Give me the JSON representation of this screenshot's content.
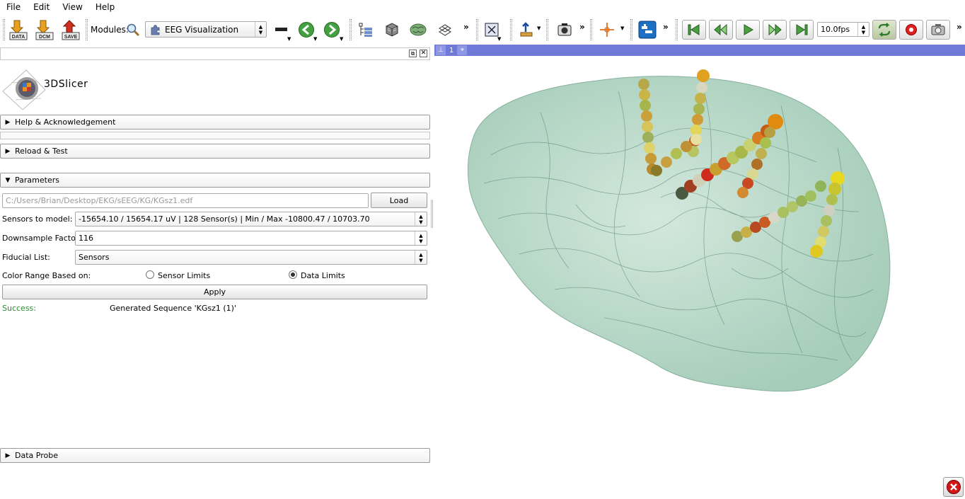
{
  "menubar": {
    "items": [
      "File",
      "Edit",
      "View",
      "Help"
    ]
  },
  "toolbar": {
    "data_label": "DATA",
    "dcm_label": "DCM",
    "save_label": "SAVE",
    "modules_label": "Modules:",
    "module_selected": "EEG Visualization",
    "fps_value": "10.0fps",
    "icons": [
      "data-icon",
      "dcm-icon",
      "save-icon",
      "search-icon",
      "puzzle-icon",
      "layout-icon",
      "back-arrow-icon",
      "forward-arrow-icon",
      "data-tree-icon",
      "volume-cube-icon",
      "brain-model-icon",
      "grid-icon",
      "crosshair-icon",
      "camera-icon",
      "mouse-mode-icon",
      "extension-icon",
      "first-frame-icon",
      "prev-frame-icon",
      "play-icon",
      "next-frame-icon",
      "last-frame-icon",
      "loop-icon",
      "record-icon",
      "screenshot-icon"
    ]
  },
  "panel": {
    "logo_text": "3DSlicer",
    "sections": {
      "help": "Help & Acknowledgement",
      "reload": "Reload & Test",
      "parameters": "Parameters",
      "data_probe": "Data Probe"
    },
    "file_path": "C:/Users/Brian/Desktop/EKG/sEEG/KG/KGsz1.edf",
    "load_label": "Load",
    "sensors_label": "Sensors to model:",
    "sensors_value": "-15654.10 / 15654.17 uV  |  128 Sensor(s)  |  Min / Max -10800.47 / 10703.70",
    "downsample_label": "Downsample Factor:",
    "downsample_value": "116",
    "fiducial_label": "Fiducial List:",
    "fiducial_value": "Sensors",
    "color_range_label": "Color Range Based on:",
    "radio_sensor": "Sensor Limits",
    "radio_data": "Data Limits",
    "radio_selected": "Data Limits",
    "apply_label": "Apply",
    "status_label": "Success:",
    "status_text": "Generated Sequence 'KGsz1 (1)'",
    "status_color": "#2e8b2e"
  },
  "view": {
    "number": "1",
    "bar_color": "#6f79d8",
    "brain_color": "#5fa68a"
  }
}
